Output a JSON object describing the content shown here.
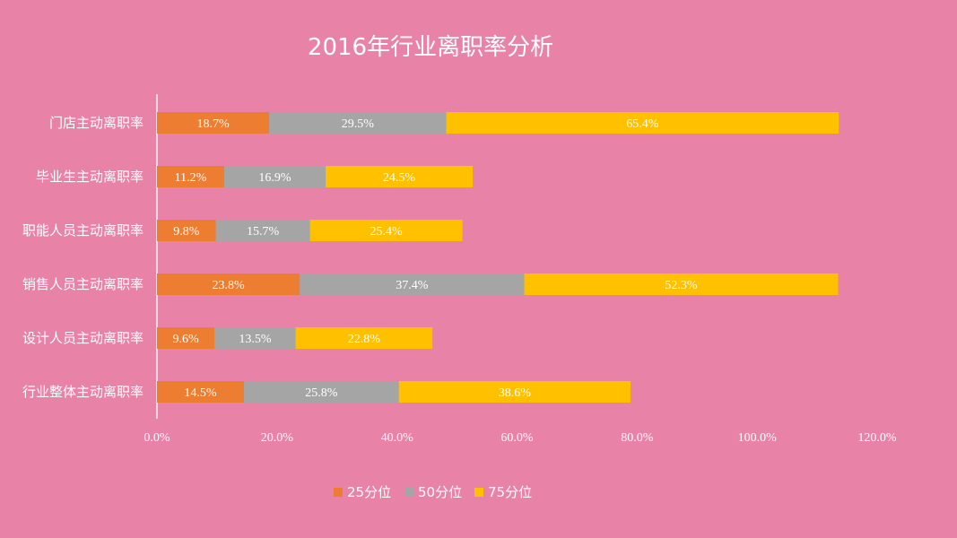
{
  "chart_data": {
    "type": "bar",
    "orientation": "horizontal",
    "stacked": true,
    "title": "2016年行业离职率分析",
    "categories": [
      "门店主动离职率",
      "毕业生主动离职率",
      "职能人员主动离职率",
      "销售人员主动离职率",
      "设计人员主动离职率",
      "行业整体主动离职率"
    ],
    "series": [
      {
        "name": "25分位",
        "color": "#ED7D31",
        "values": [
          18.7,
          11.2,
          9.8,
          23.8,
          9.6,
          14.5
        ],
        "labels": [
          "18.7%",
          "11.2%",
          "9.8%",
          "23.8%",
          "9.6%",
          "14.5%"
        ]
      },
      {
        "name": "50分位",
        "color": "#A5A5A5",
        "values": [
          29.5,
          16.9,
          15.7,
          37.4,
          13.5,
          25.8
        ],
        "labels": [
          "29.5%",
          "16.9%",
          "15.7%",
          "37.4%",
          "13.5%",
          "25.8%"
        ]
      },
      {
        "name": "75分位",
        "color": "#FFC000",
        "values": [
          65.4,
          24.5,
          25.4,
          52.3,
          22.8,
          38.6
        ],
        "labels": [
          "65.4%",
          "24.5%",
          "25.4%",
          "52.3%",
          "22.8%",
          "38.6%"
        ]
      }
    ],
    "xlim": [
      0,
      120
    ],
    "x_ticks": [
      0,
      20,
      40,
      60,
      80,
      100,
      120
    ],
    "x_tick_labels": [
      "0.0%",
      "20.0%",
      "40.0%",
      "60.0%",
      "80.0%",
      "100.0%",
      "120.0%"
    ],
    "grid": false,
    "legend_position": "bottom"
  }
}
